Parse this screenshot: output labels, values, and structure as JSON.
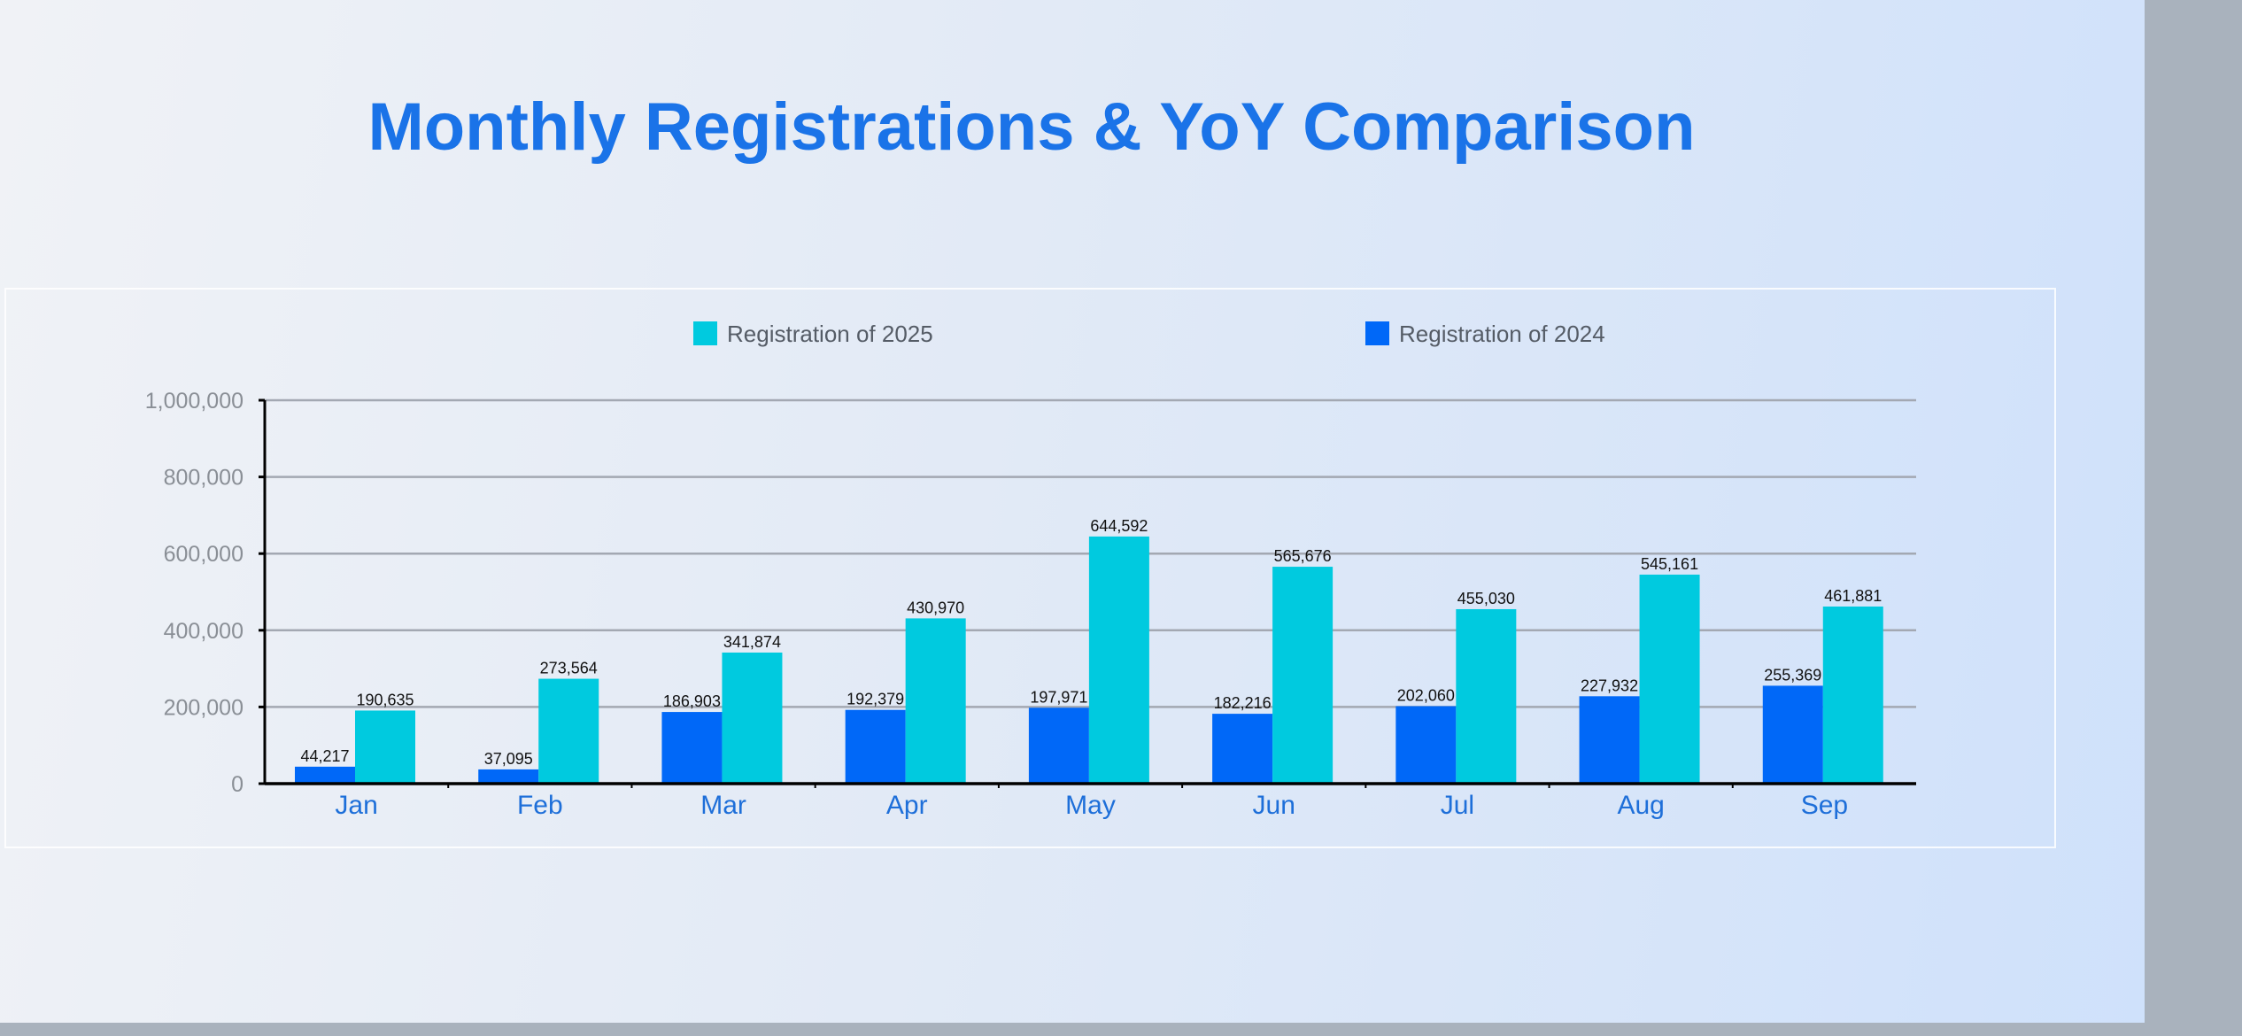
{
  "title": "Monthly Registrations & YoY Comparison",
  "chart_data": {
    "type": "bar",
    "title": "Monthly Registrations & YoY Comparison",
    "categories": [
      "Jan",
      "Feb",
      "Mar",
      "Apr",
      "May",
      "Jun",
      "Jul",
      "Aug",
      "Sep"
    ],
    "series": [
      {
        "name": "Registration of 2024",
        "color": "#0068f8",
        "values": [
          44217,
          37095,
          186903,
          192379,
          197971,
          182216,
          202060,
          227932,
          255369
        ]
      },
      {
        "name": "Registration of 2025",
        "color": "#00cadf",
        "values": [
          190635,
          273564,
          341874,
          430970,
          644592,
          565676,
          455030,
          545161,
          461881
        ]
      }
    ],
    "ylim": [
      0,
      1000000
    ],
    "yticks": [
      "0",
      "200,000",
      "400,000",
      "600,000",
      "800,000",
      "1,000,000"
    ],
    "ytick_values": [
      0,
      200000,
      400000,
      600000,
      800000,
      1000000
    ],
    "legend": "top",
    "legend_order": [
      "Registration of 2025",
      "Registration of 2024"
    ],
    "grid": true,
    "xlabel": "",
    "ylabel": ""
  }
}
